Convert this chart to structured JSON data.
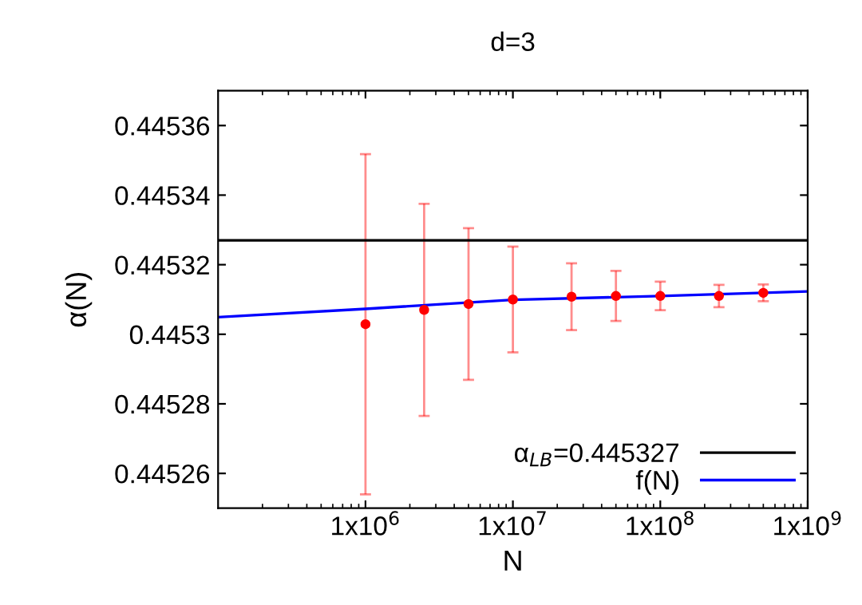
{
  "chart_data": {
    "type": "scatter",
    "title": "d=3",
    "xlabel": "N",
    "ylabel": "α(N)",
    "log": "x",
    "xlim": [
      100000,
      1000000000
    ],
    "ylim": [
      0.44525,
      0.44537
    ],
    "xticks": [
      {
        "value": 1000000,
        "label": "1x10$^{6}$"
      },
      {
        "value": 10000000,
        "label": "1x10$^{7}$"
      },
      {
        "value": 100000000,
        "label": "1x10$^{8}$"
      },
      {
        "value": 1000000000,
        "label": "1x10$^{9}$"
      }
    ],
    "yticks": [
      0.44526,
      0.44528,
      0.4453,
      0.44532,
      0.44534,
      0.44536
    ],
    "grid": false,
    "legend": "bottom right",
    "marker": "circle",
    "series": [
      {
        "color": "#ff0000",
        "x": [
          1000000,
          2500000,
          5000000,
          10000000,
          25000000,
          50000000,
          100000000,
          250000000,
          500000000
        ],
        "values": [
          0.4453029,
          0.445307,
          0.4453087,
          0.44531,
          0.4453108,
          0.445311,
          0.445311,
          0.445311,
          0.4453119
        ],
        "errors": [
          4.89e-05,
          3.05e-05,
          2.18e-05,
          1.52e-05,
          9.6e-06,
          7.2e-06,
          4.1e-06,
          3.2e-06,
          2.4e-06
        ]
      },
      {
        "type": "line",
        "name": "f(N)",
        "color": "#0000ff",
        "marker": "none",
        "x": [
          100000,
          1000000,
          10000000,
          100000000,
          1000000000
        ],
        "values": [
          0.4453049,
          0.4453073,
          0.4453099,
          0.445311,
          0.4453123
        ]
      }
    ],
    "ref_lines": [
      {
        "axis": "y",
        "value": 0.445327,
        "label": "α$_{LB}$=0.445327",
        "color": "#000000"
      }
    ]
  }
}
